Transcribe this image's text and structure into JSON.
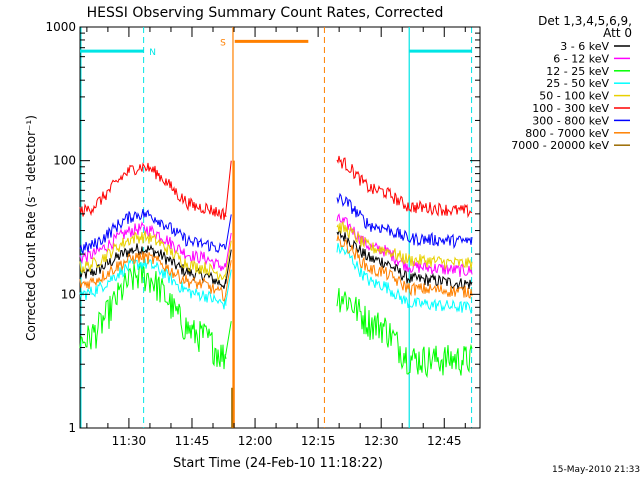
{
  "chart_data": {
    "type": "line",
    "title": "HESSI Observing Summary Count Rates, Corrected",
    "xlabel": "Start Time (24-Feb-10 11:18:22)",
    "ylabel": "Corrected Count Rate (s⁻¹ detector⁻¹)",
    "yscale": "log",
    "ylim": [
      1,
      1000
    ],
    "xlim": [
      "11:18:22",
      "12:53:30"
    ],
    "x_ticks": [
      "11:30",
      "11:45",
      "12:00",
      "12:15",
      "12:30",
      "12:45"
    ],
    "y_ticks": [
      "1",
      "10",
      "100",
      "1000"
    ],
    "legend_header": [
      "Det 1,3,4,5,6,9,",
      "Att 0"
    ],
    "legend_position": "right",
    "footer": "15-May-2010 21:33",
    "series": [
      {
        "name": "3 - 6 keV",
        "color": "#000000",
        "pre": [
          14,
          22,
          14,
          12
        ],
        "post": [
          28,
          18,
          13,
          12
        ]
      },
      {
        "name": "6 - 12 keV",
        "color": "#ff00ff",
        "pre": [
          19,
          31,
          19,
          16
        ],
        "post": [
          36,
          22,
          16,
          15
        ]
      },
      {
        "name": "12 - 25 keV",
        "color": "#00ff00",
        "pre": [
          4.5,
          14,
          5,
          3.5
        ],
        "post": [
          10,
          6,
          3.3,
          3.3
        ]
      },
      {
        "name": "25 - 50 keV",
        "color": "#00ffff",
        "pre": [
          10,
          17,
          10,
          8.5
        ],
        "post": [
          22,
          12,
          8.5,
          8
        ]
      },
      {
        "name": "50 - 100 keV",
        "color": "#e8d000",
        "pre": [
          16,
          27,
          16,
          14
        ],
        "post": [
          32,
          22,
          18,
          17
        ]
      },
      {
        "name": "100 - 300 keV",
        "color": "#ff0000",
        "pre": [
          42,
          90,
          45,
          40
        ],
        "post": [
          100,
          60,
          45,
          42
        ]
      },
      {
        "name": "300 - 800 keV",
        "color": "#0000ff",
        "pre": [
          22,
          40,
          24,
          22
        ],
        "post": [
          52,
          32,
          26,
          25
        ]
      },
      {
        "name": "800 - 7000 keV",
        "color": "#ff8000",
        "pre": [
          12,
          19,
          12,
          10
        ],
        "post": [
          25,
          15,
          11,
          10.5
        ]
      },
      {
        "name": "7000 - 20000 keV",
        "color": "#9a6a00",
        "pre": [],
        "post": []
      }
    ],
    "flags": {
      "night": {
        "label": "N",
        "color": "#00e5e5"
      },
      "saa": {
        "label": "S",
        "color": "#ff8000"
      }
    }
  }
}
